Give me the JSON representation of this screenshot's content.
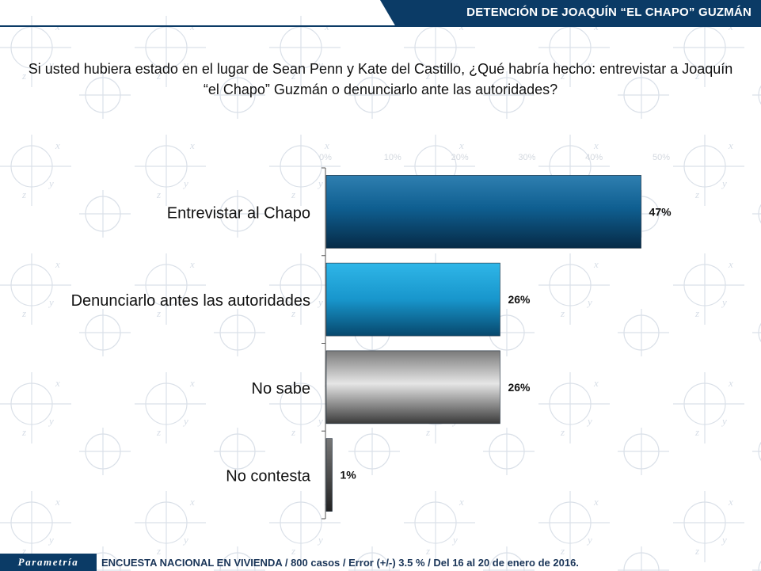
{
  "header": {
    "title": "DETENCIÓN DE JOAQUÍN “EL CHAPO” GUZMÁN"
  },
  "question": "Si usted hubiera estado en el lugar de Sean Penn y Kate del Castillo, ¿Qué habría hecho: entrevistar a Joaquín “el Chapo” Guzmán o denunciarlo ante las autoridades?",
  "footer": {
    "logo": "Parametría",
    "note": "ENCUESTA NACIONAL EN VIVIENDA / 800 casos / Error (+/-) 3.5 % / Del 16 al 20 de enero de 2016."
  },
  "colors": {
    "header_band": "#0b3b66",
    "bar_blue_dark": "#0d5c8c",
    "bar_blue_light": "#19a3dc",
    "bar_gray": "#8c8c8c",
    "bar_dark": "#4a4a4a"
  },
  "chart_data": {
    "type": "bar",
    "orientation": "horizontal",
    "categories": [
      "Entrevistar al Chapo",
      "Denunciarlo antes las autoridades",
      "No sabe",
      "No contesta"
    ],
    "values": [
      47,
      26,
      26,
      1
    ],
    "value_labels": [
      "47%",
      "26%",
      "26%",
      "1%"
    ],
    "xlim": [
      0,
      50
    ],
    "x_ticks": [
      "0%",
      "10%",
      "20%",
      "30%",
      "40%",
      "50%"
    ],
    "bar_colors": [
      "dark-blue",
      "light-blue",
      "gray",
      "dark-gray"
    ]
  }
}
